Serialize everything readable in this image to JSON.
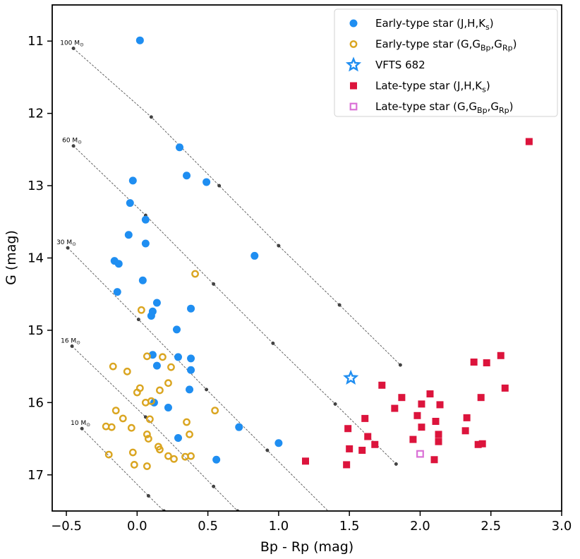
{
  "chart_data": {
    "type": "scatter",
    "title": "",
    "xlabel": "Bp - Rp (mag)",
    "ylabel": "G (mag)",
    "xlim": [
      -0.6,
      3.0
    ],
    "ylim": [
      17.5,
      10.5
    ],
    "y_inverted": true,
    "grid": false,
    "legend_position": "top-right",
    "x_ticks": [
      -0.5,
      0.0,
      0.5,
      1.0,
      1.5,
      2.0,
      2.5,
      3.0
    ],
    "x_tick_labels": [
      "−0.5",
      "0.0",
      "0.5",
      "1.0",
      "1.5",
      "2.0",
      "2.5",
      "3.0"
    ],
    "y_ticks": [
      11,
      12,
      13,
      14,
      15,
      16,
      17
    ],
    "y_tick_labels": [
      "11",
      "12",
      "13",
      "14",
      "15",
      "16",
      "17"
    ],
    "colors": {
      "early_jhk": "#1f8ef1",
      "early_gbr": "#daa520",
      "vfts": "#1f8ef1",
      "late_jhk": "#dc143c",
      "late_gbr": "#da70d6",
      "track": "#555555"
    },
    "tracks": [
      {
        "label": "100 M",
        "x": [
          -0.45,
          0.1,
          0.58,
          1.0,
          1.43,
          1.86
        ],
        "y": [
          11.1,
          12.05,
          13.0,
          13.83,
          14.65,
          15.48
        ]
      },
      {
        "label": "60 M",
        "x": [
          -0.45,
          0.06,
          0.54,
          0.96,
          1.4,
          1.83
        ],
        "y": [
          12.45,
          13.41,
          14.36,
          15.18,
          16.02,
          16.85
        ]
      },
      {
        "label": "30 M",
        "x": [
          -0.49,
          0.01,
          0.49,
          0.92,
          1.36
        ],
        "y": [
          13.86,
          14.85,
          15.82,
          16.66,
          17.52
        ]
      },
      {
        "label": "16 M",
        "x": [
          -0.46,
          0.06,
          0.54,
          0.71
        ],
        "y": [
          15.22,
          16.2,
          17.16,
          17.5
        ]
      },
      {
        "label": "10 M",
        "x": [
          -0.39,
          0.08,
          0.19
        ],
        "y": [
          16.36,
          17.29,
          17.5
        ]
      }
    ],
    "series": [
      {
        "name": "Early-type star (J,H,Ks)",
        "legend_main": "Early-type star (J,H,K",
        "legend_sub": "s",
        "legend_tail": ")",
        "marker": "circle",
        "x": [
          0.02,
          0.3,
          -0.03,
          0.35,
          0.49,
          -0.05,
          0.06,
          -0.06,
          0.06,
          -0.13,
          -0.16,
          0.83,
          0.04,
          -0.14,
          0.14,
          0.11,
          0.1,
          0.38,
          0.28,
          0.11,
          0.29,
          0.38,
          0.14,
          0.38,
          0.37,
          0.12,
          0.22,
          0.72,
          1.0,
          0.29,
          0.56
        ],
        "y": [
          10.99,
          12.47,
          12.93,
          12.86,
          12.95,
          13.24,
          13.47,
          13.68,
          13.8,
          14.08,
          14.04,
          13.97,
          14.31,
          14.47,
          14.62,
          14.74,
          14.8,
          14.7,
          14.99,
          15.34,
          15.37,
          15.39,
          15.49,
          15.55,
          15.82,
          16.0,
          16.07,
          16.34,
          16.56,
          16.49,
          16.79
        ]
      },
      {
        "name": "Early-type star (G,GBp,GRp)",
        "legend_main": "Early-type star (G,G",
        "legend_sub": "Bp",
        "legend_mid": ",G",
        "legend_sub2": "Rp",
        "legend_tail": ")",
        "marker": "ring",
        "x": [
          0.41,
          0.03,
          -0.17,
          0.07,
          0.18,
          -0.07,
          0.24,
          0.22,
          0.16,
          0.02,
          0.0,
          0.06,
          0.1,
          0.55,
          -0.15,
          -0.1,
          0.35,
          -0.22,
          -0.18,
          0.09,
          -0.04,
          0.07,
          0.15,
          0.37,
          0.08,
          0.16,
          -0.03,
          0.22,
          0.26,
          0.34,
          0.38,
          -0.2,
          -0.02,
          0.07
        ],
        "y": [
          14.22,
          14.72,
          15.5,
          15.36,
          15.37,
          15.57,
          15.51,
          15.73,
          15.83,
          15.8,
          15.86,
          16.0,
          15.98,
          16.11,
          16.11,
          16.22,
          16.27,
          16.33,
          16.34,
          16.23,
          16.35,
          16.44,
          16.61,
          16.44,
          16.5,
          16.65,
          16.69,
          16.74,
          16.78,
          16.75,
          16.74,
          16.72,
          16.86,
          16.88
        ]
      },
      {
        "name": "VFTS 682",
        "legend_main": "VFTS 682",
        "marker": "star",
        "x": [
          1.51
        ],
        "y": [
          15.66
        ]
      },
      {
        "name": "Late-type star (J,H,Ks)",
        "legend_main": "Late-type star (J,H,K",
        "legend_sub": "s",
        "legend_tail": ")",
        "marker": "square",
        "x": [
          2.77,
          1.73,
          2.57,
          2.38,
          2.47,
          2.6,
          1.87,
          2.07,
          1.82,
          2.01,
          2.14,
          2.43,
          1.61,
          2.11,
          2.33,
          1.49,
          2.32,
          1.98,
          2.13,
          1.95,
          1.63,
          1.68,
          2.01,
          2.13,
          1.5,
          1.59,
          2.44,
          2.41,
          2.1,
          1.19,
          1.48
        ],
        "y": [
          12.39,
          15.76,
          15.35,
          15.44,
          15.45,
          15.8,
          15.93,
          15.88,
          16.08,
          16.02,
          16.03,
          15.93,
          16.22,
          16.26,
          16.21,
          16.36,
          16.39,
          16.18,
          16.44,
          16.51,
          16.47,
          16.58,
          16.34,
          16.54,
          16.64,
          16.66,
          16.57,
          16.58,
          16.79,
          16.81,
          16.86
        ]
      },
      {
        "name": "Late-type star (G,GBp,GRp)",
        "legend_main": "Late-type star (G,G",
        "legend_sub": "Bp",
        "legend_mid": ",G",
        "legend_sub2": "Rp",
        "legend_tail": ")",
        "marker": "hollow-square",
        "x": [
          2.0
        ],
        "y": [
          16.71
        ]
      }
    ]
  }
}
